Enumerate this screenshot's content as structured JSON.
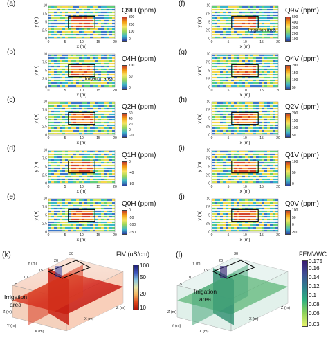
{
  "chart_data": [
    {
      "type": "heatmap",
      "panel": "(a)",
      "title": "Q9H (ppm)",
      "xlabel": "x (m)",
      "ylabel": "y (m)",
      "xlim": [
        0,
        20
      ],
      "ylim": [
        0,
        10
      ],
      "x_ticks": [
        "0",
        "5",
        "10",
        "15",
        "20"
      ],
      "y_ticks": [
        "0",
        "2.5",
        "5",
        "7.5",
        "10"
      ],
      "colorbar_ticks": [
        "300",
        "200",
        "100",
        "0"
      ],
      "annotation": ""
    },
    {
      "type": "heatmap",
      "panel": "(b)",
      "title": "Q4H (ppm)",
      "xlabel": "x (m)",
      "ylabel": "y (m)",
      "xlim": [
        0,
        20
      ],
      "ylim": [
        0,
        10
      ],
      "x_ticks": [
        "0",
        "5",
        "10",
        "15",
        "20"
      ],
      "y_ticks": [
        "0",
        "2.5",
        "5",
        "7.5",
        "10"
      ],
      "colorbar_ticks": [
        "100",
        "50",
        "0"
      ],
      "annotation": "Irrigation area"
    },
    {
      "type": "heatmap",
      "panel": "(c)",
      "title": "Q2H (ppm)",
      "xlabel": "x (m)",
      "ylabel": "y (m)",
      "xlim": [
        0,
        20
      ],
      "ylim": [
        0,
        10
      ],
      "x_ticks": [
        "0",
        "5",
        "10",
        "15",
        "20"
      ],
      "y_ticks": [
        "0",
        "2.5",
        "5",
        "7.5",
        "10"
      ],
      "colorbar_ticks": [
        "60",
        "40",
        "20",
        "0",
        "-20"
      ],
      "annotation": ""
    },
    {
      "type": "heatmap",
      "panel": "(d)",
      "title": "Q1H (ppm)",
      "xlabel": "x (m)",
      "ylabel": "y (m)",
      "xlim": [
        0,
        20
      ],
      "ylim": [
        0,
        10
      ],
      "x_ticks": [
        "0",
        "5",
        "10",
        "15",
        "20"
      ],
      "y_ticks": [
        "0",
        "2.5",
        "5",
        "7.5",
        "10"
      ],
      "colorbar_ticks": [
        "0",
        "-40",
        "-80"
      ],
      "annotation": ""
    },
    {
      "type": "heatmap",
      "panel": "(e)",
      "title": "Q0H (ppm)",
      "xlabel": "x (m)",
      "ylabel": "y (m)",
      "xlim": [
        0,
        20
      ],
      "ylim": [
        0,
        10
      ],
      "x_ticks": [
        "0",
        "5",
        "10",
        "15",
        "20"
      ],
      "y_ticks": [
        "0",
        "2.5",
        "5",
        "7.5",
        "10"
      ],
      "colorbar_ticks": [
        "0",
        "-50",
        "-100",
        "-150"
      ],
      "annotation": ""
    },
    {
      "type": "heatmap",
      "panel": "(f)",
      "title": "Q9V (ppm)",
      "xlabel": "x (m)",
      "ylabel": "y (m)",
      "xlim": [
        0,
        20
      ],
      "ylim": [
        0,
        10
      ],
      "x_ticks": [
        "0",
        "5",
        "10",
        "15",
        "20"
      ],
      "y_ticks": [
        "0",
        "2.5",
        "5",
        "7.5",
        "10"
      ],
      "colorbar_ticks": [
        "500",
        "400",
        "300",
        "200",
        "100"
      ],
      "annotation": "Irrigation area"
    },
    {
      "type": "heatmap",
      "panel": "(g)",
      "title": "Q4V (ppm)",
      "xlabel": "x (m)",
      "ylabel": "y (m)",
      "xlim": [
        0,
        20
      ],
      "ylim": [
        0,
        10
      ],
      "x_ticks": [
        "0",
        "5",
        "10",
        "15",
        "20"
      ],
      "y_ticks": [
        "0",
        "2.5",
        "5",
        "7.5",
        "10"
      ],
      "colorbar_ticks": [
        "200",
        "150",
        "100",
        "50"
      ],
      "annotation": ""
    },
    {
      "type": "heatmap",
      "panel": "(h)",
      "title": "Q2V (ppm)",
      "xlabel": "x (m)",
      "ylabel": "y (m)",
      "xlim": [
        0,
        20
      ],
      "ylim": [
        0,
        10
      ],
      "x_ticks": [
        "0",
        "5",
        "10",
        "15",
        "20"
      ],
      "y_ticks": [
        "0",
        "2.5",
        "5",
        "7.5",
        "10"
      ],
      "colorbar_ticks": [
        "200",
        "150",
        "100",
        "50"
      ],
      "annotation": ""
    },
    {
      "type": "heatmap",
      "panel": "(i)",
      "title": "Q1V (ppm)",
      "xlabel": "x (m)",
      "ylabel": "y (m)",
      "xlim": [
        0,
        20
      ],
      "ylim": [
        0,
        10
      ],
      "x_ticks": [
        "0",
        "5",
        "10",
        "15",
        "20"
      ],
      "y_ticks": [
        "0",
        "2.5",
        "5",
        "7.5",
        "10"
      ],
      "colorbar_ticks": [
        "100",
        "50",
        "0"
      ],
      "annotation": ""
    },
    {
      "type": "heatmap",
      "panel": "(j)",
      "title": "Q0V (ppm)",
      "xlabel": "x (m)",
      "ylabel": "y (m)",
      "xlim": [
        0,
        20
      ],
      "ylim": [
        0,
        10
      ],
      "x_ticks": [
        "0",
        "5",
        "10",
        "15",
        "20"
      ],
      "y_ticks": [
        "0",
        "2.5",
        "5",
        "7.5",
        "10"
      ],
      "colorbar_ticks": [
        "100",
        "50",
        "0",
        "-50"
      ],
      "annotation": ""
    }
  ],
  "panel_k": {
    "letter": "(k)",
    "title": "FIV (uS/cm)",
    "colorbar_ticks": [
      "100",
      "50",
      "20",
      "10"
    ],
    "annotation": [
      "Irrigation",
      "area"
    ],
    "axis_labels": [
      "X (m)",
      "Y (m)",
      "Z (m)"
    ],
    "tick_labels": [
      "30",
      "20",
      "15",
      "10",
      "5",
      "0",
      "10",
      "20",
      "10",
      "0"
    ]
  },
  "panel_l": {
    "letter": "(l)",
    "title": "FEMVWC",
    "colorbar_ticks": [
      "0.175",
      "0.16",
      "0.14",
      "0.12",
      "0.1",
      "0.08",
      "0.06",
      "0.03"
    ],
    "annotation": [
      "Irrigation",
      "area"
    ],
    "axis_labels": [
      "X (m)",
      "Y (m)",
      "Z (m)"
    ],
    "tick_labels": [
      "30",
      "20",
      "15",
      "10",
      "5",
      "0",
      "10",
      "20",
      "10",
      "0"
    ]
  },
  "colors": {
    "frame": "#000000",
    "background_map": "#ffffff",
    "k_low": "#c0120c",
    "k_high": "#2b2f8f",
    "l_low": "#e8f46a",
    "l_high": "#3b1c74"
  }
}
